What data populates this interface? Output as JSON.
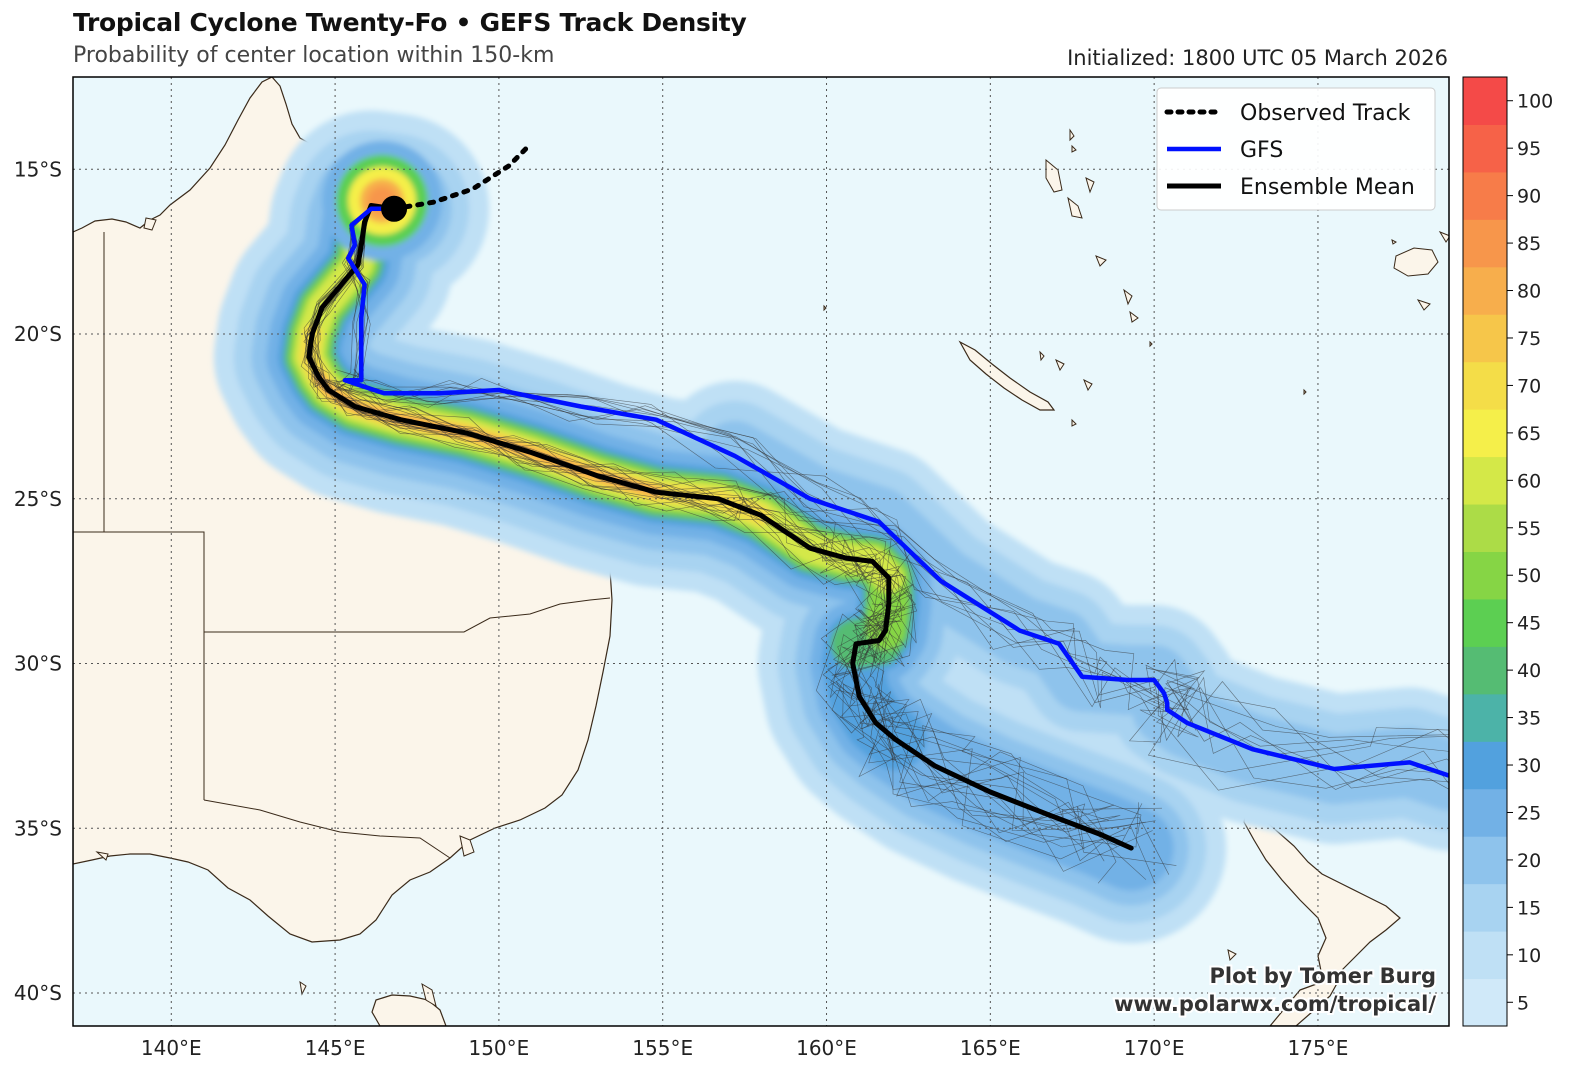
{
  "header": {
    "title": "Tropical Cyclone Twenty-Fo • GEFS Track Density",
    "subtitle": "Probability of center location within 150-km",
    "initialized": "Initialized: 1800 UTC 05 March 2026"
  },
  "map": {
    "lon_range": [
      137,
      179
    ],
    "lat_range": [
      -41,
      -12.2
    ],
    "lon_ticks": [
      {
        "lon": 140,
        "label": "140°E"
      },
      {
        "lon": 145,
        "label": "145°E"
      },
      {
        "lon": 150,
        "label": "150°E"
      },
      {
        "lon": 155,
        "label": "155°E"
      },
      {
        "lon": 160,
        "label": "160°E"
      },
      {
        "lon": 165,
        "label": "165°E"
      },
      {
        "lon": 170,
        "label": "170°E"
      },
      {
        "lon": 175,
        "label": "175°E"
      }
    ],
    "lat_ticks": [
      {
        "lat": -15,
        "label": "15°S"
      },
      {
        "lat": -20,
        "label": "20°S"
      },
      {
        "lat": -25,
        "label": "25°S"
      },
      {
        "lat": -30,
        "label": "30°S"
      },
      {
        "lat": -35,
        "label": "35°S"
      },
      {
        "lat": -40,
        "label": "40°S"
      }
    ],
    "current_position": {
      "lon": 146.8,
      "lat": -16.2
    },
    "ocean_color": "#eaf8fc",
    "land_color": "#fbf5ea",
    "coast_color": "#3a2a1a"
  },
  "legend": {
    "observed": "Observed Track",
    "gfs": "GFS",
    "mean": "Ensemble Mean"
  },
  "tracks": {
    "observed": [
      [
        146.8,
        -16.2
      ],
      [
        148.0,
        -16.0
      ],
      [
        149.2,
        -15.6
      ],
      [
        150.3,
        -14.9
      ],
      [
        150.9,
        -14.3
      ]
    ],
    "gfs": [
      [
        146.8,
        -16.2
      ],
      [
        146.1,
        -16.2
      ],
      [
        145.5,
        -16.7
      ],
      [
        145.6,
        -17.3
      ],
      [
        145.4,
        -17.7
      ],
      [
        145.9,
        -18.5
      ],
      [
        145.8,
        -19.5
      ],
      [
        145.8,
        -21.4
      ],
      [
        145.3,
        -21.4
      ],
      [
        146.5,
        -21.8
      ],
      [
        148.2,
        -21.8
      ],
      [
        150.0,
        -21.7
      ],
      [
        152.5,
        -22.2
      ],
      [
        154.8,
        -22.6
      ],
      [
        157.2,
        -23.7
      ],
      [
        159.5,
        -25.0
      ],
      [
        161.6,
        -25.7
      ],
      [
        163.5,
        -27.5
      ],
      [
        165.9,
        -29.0
      ],
      [
        167.1,
        -29.4
      ],
      [
        167.8,
        -30.4
      ],
      [
        169.2,
        -30.5
      ],
      [
        170.0,
        -30.5
      ],
      [
        170.3,
        -30.9
      ],
      [
        170.4,
        -31.2
      ],
      [
        170.4,
        -31.4
      ],
      [
        171.0,
        -31.8
      ],
      [
        173.0,
        -32.6
      ],
      [
        175.5,
        -33.2
      ],
      [
        177.8,
        -33.0
      ],
      [
        179.0,
        -33.4
      ]
    ],
    "mean": [
      [
        146.8,
        -16.2
      ],
      [
        146.1,
        -16.1
      ],
      [
        145.9,
        -16.6
      ],
      [
        145.8,
        -17.3
      ],
      [
        145.7,
        -17.9
      ],
      [
        144.6,
        -19.2
      ],
      [
        144.3,
        -20.0
      ],
      [
        144.2,
        -20.7
      ],
      [
        144.5,
        -21.3
      ],
      [
        144.8,
        -21.7
      ],
      [
        145.6,
        -22.2
      ],
      [
        147.0,
        -22.6
      ],
      [
        149.0,
        -23.0
      ],
      [
        151.0,
        -23.6
      ],
      [
        153.0,
        -24.3
      ],
      [
        154.8,
        -24.8
      ],
      [
        156.7,
        -25.0
      ],
      [
        158.0,
        -25.5
      ],
      [
        159.5,
        -26.5
      ],
      [
        160.6,
        -26.8
      ],
      [
        161.4,
        -26.9
      ],
      [
        161.9,
        -27.4
      ],
      [
        161.9,
        -28.2
      ],
      [
        161.8,
        -29.0
      ],
      [
        161.6,
        -29.3
      ],
      [
        160.9,
        -29.4
      ],
      [
        160.8,
        -30.0
      ],
      [
        161.0,
        -31.0
      ],
      [
        161.5,
        -31.8
      ],
      [
        162.1,
        -32.3
      ],
      [
        163.3,
        -33.1
      ],
      [
        165.0,
        -33.9
      ],
      [
        166.8,
        -34.6
      ],
      [
        168.4,
        -35.2
      ],
      [
        169.3,
        -35.6
      ]
    ]
  },
  "density_levels": [
    {
      "level": 5,
      "color": "#d0e9f9"
    },
    {
      "level": 10,
      "color": "#bfe0f5"
    },
    {
      "level": 15,
      "color": "#a8d3f1"
    },
    {
      "level": 20,
      "color": "#8ec3ec"
    },
    {
      "level": 25,
      "color": "#72b1e6"
    },
    {
      "level": 30,
      "color": "#52a1de"
    },
    {
      "level": 35,
      "color": "#4cb3a8"
    },
    {
      "level": 40,
      "color": "#55bc73"
    },
    {
      "level": 45,
      "color": "#5ccf52"
    },
    {
      "level": 50,
      "color": "#86d545"
    },
    {
      "level": 55,
      "color": "#acdc47"
    },
    {
      "level": 60,
      "color": "#d4e848"
    },
    {
      "level": 65,
      "color": "#f5ef4a"
    },
    {
      "level": 70,
      "color": "#f4dd48"
    },
    {
      "level": 75,
      "color": "#f6c64a"
    },
    {
      "level": 80,
      "color": "#f7ae4c"
    },
    {
      "level": 85,
      "color": "#f7964b"
    },
    {
      "level": 90,
      "color": "#f77c49"
    },
    {
      "level": 95,
      "color": "#f66248"
    },
    {
      "level": 100,
      "color": "#f44a48"
    }
  ],
  "colorbar": {
    "labels": [
      "5",
      "10",
      "15",
      "20",
      "25",
      "30",
      "35",
      "40",
      "45",
      "50",
      "55",
      "60",
      "65",
      "70",
      "75",
      "80",
      "85",
      "90",
      "95",
      "100"
    ]
  },
  "credit": {
    "line1": "Plot by Tomer Burg",
    "line2": "www.polarwx.com/tropical/"
  }
}
